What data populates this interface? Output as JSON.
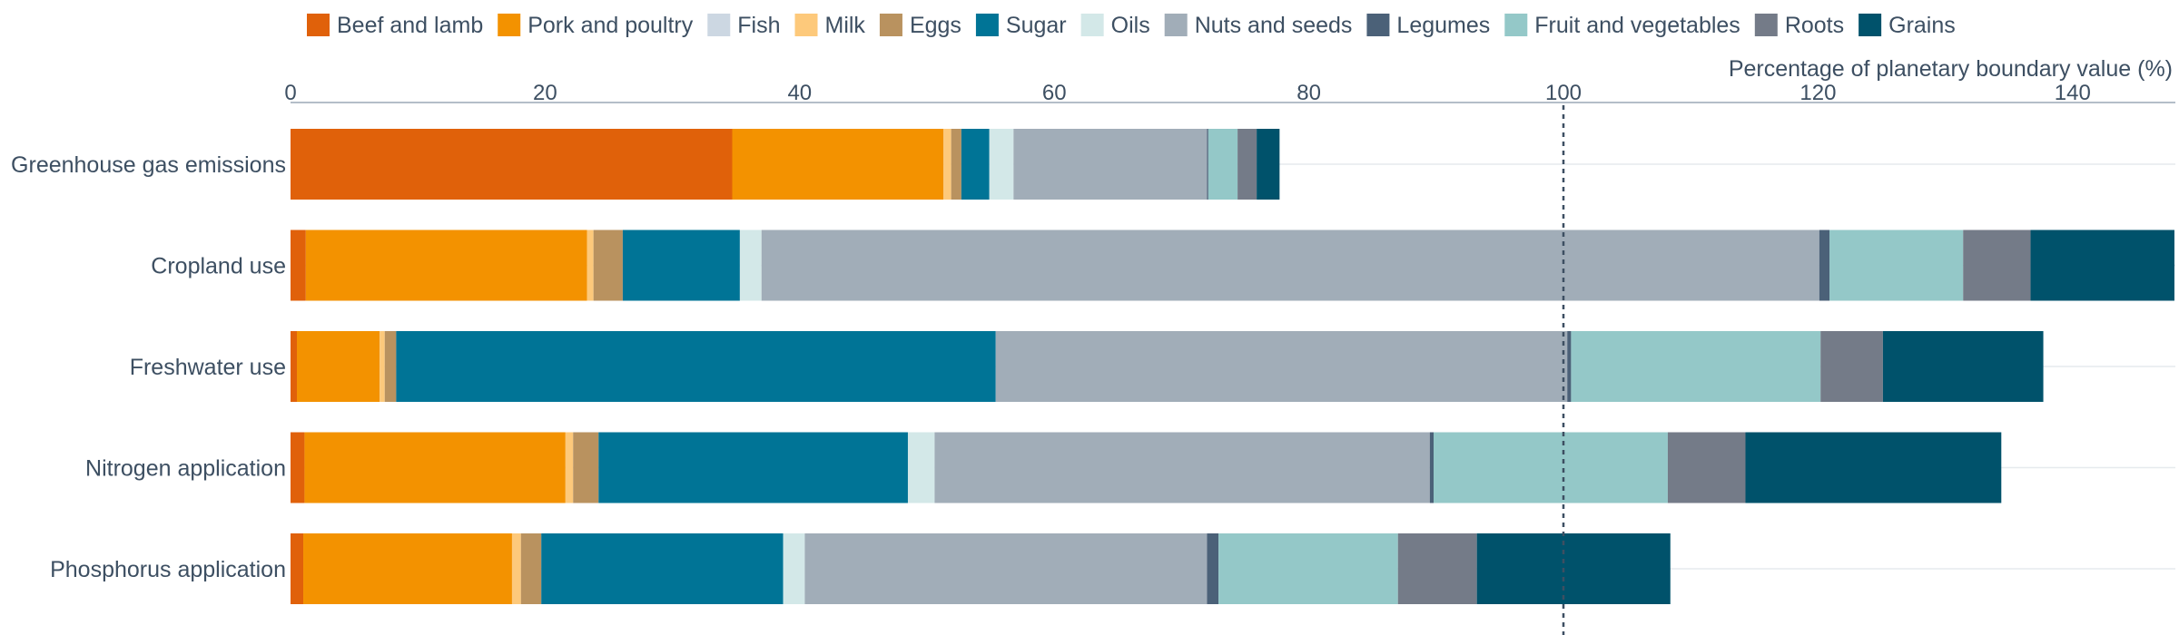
{
  "chart_data": {
    "type": "bar",
    "orientation": "horizontal",
    "stacked": true,
    "x_axis_title": "Percentage of planetary boundary value (%)",
    "x_ticks": [
      "0",
      "20",
      "40",
      "60",
      "80",
      "100",
      "120",
      "140"
    ],
    "xlim": [
      0,
      148
    ],
    "reference_line": 100,
    "legend_position": "top",
    "categories": [
      "Greenhouse gas emissions",
      "Cropland use",
      "Freshwater use",
      "Nitrogen application",
      "Phosphorus application"
    ],
    "series": [
      {
        "name": "Beef and lamb",
        "color": "#e0610a",
        "values": [
          34.7,
          1.2,
          0.5,
          1.1,
          1.0
        ]
      },
      {
        "name": "Pork and poultry",
        "color": "#f39200",
        "values": [
          16.6,
          22.1,
          6.5,
          20.5,
          16.4
        ]
      },
      {
        "name": "Fish",
        "color": "#ccd7e2",
        "values": [
          0.0,
          0.0,
          0.0,
          0.0,
          0.0
        ]
      },
      {
        "name": "Milk",
        "color": "#fdc97b",
        "values": [
          0.6,
          0.5,
          0.4,
          0.6,
          0.7
        ]
      },
      {
        "name": "Eggs",
        "color": "#b9925f",
        "values": [
          0.8,
          2.3,
          0.9,
          2.0,
          1.6
        ]
      },
      {
        "name": "Sugar",
        "color": "#007496",
        "values": [
          2.2,
          9.2,
          47.1,
          24.3,
          19.0
        ]
      },
      {
        "name": "Oils",
        "color": "#d3e8e8",
        "values": [
          1.9,
          1.7,
          0.0,
          2.1,
          1.7
        ]
      },
      {
        "name": "Nuts and seeds",
        "color": "#a1adb8",
        "values": [
          15.2,
          83.1,
          44.9,
          38.9,
          31.6
        ]
      },
      {
        "name": "Legumes",
        "color": "#4b6178",
        "values": [
          0.1,
          0.8,
          0.3,
          0.3,
          0.9
        ]
      },
      {
        "name": "Fruit and vegetables",
        "color": "#94c8c8",
        "values": [
          2.3,
          10.5,
          19.6,
          18.4,
          14.1
        ]
      },
      {
        "name": "Roots",
        "color": "#747b88",
        "values": [
          1.5,
          5.3,
          4.9,
          6.1,
          6.2
        ]
      },
      {
        "name": "Grains",
        "color": "#00526b",
        "values": [
          1.8,
          11.6,
          12.6,
          20.1,
          15.2
        ]
      }
    ]
  }
}
